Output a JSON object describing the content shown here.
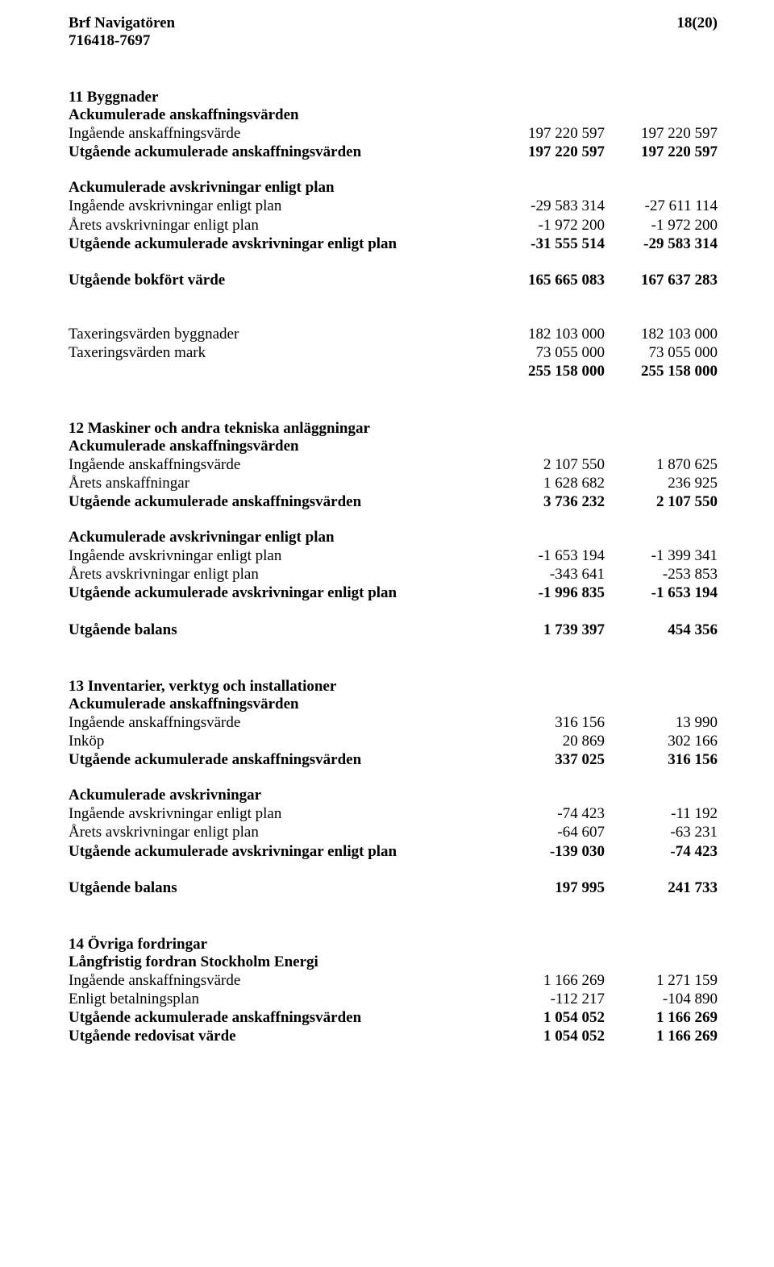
{
  "header": {
    "org_name": "Brf Navigatören",
    "page_no": "18(20)",
    "org_number": "716418-7697"
  },
  "note11": {
    "title": "11 Byggnader",
    "ackum_ansk_h": "Ackumulerade anskaffningsvärden",
    "r1": {
      "l": "Ingående anskaffningsvärde",
      "c1": "197 220 597",
      "c2": "197 220 597"
    },
    "r2": {
      "l": "Utgående ackumulerade anskaffningsvärden",
      "c1": "197 220 597",
      "c2": "197 220 597"
    },
    "ackum_avskr_h": "Ackumulerade avskrivningar enligt plan",
    "r3": {
      "l": "Ingående avskrivningar enligt plan",
      "c1": "-29 583 314",
      "c2": "-27 611 114"
    },
    "r4": {
      "l": "Årets avskrivningar enligt plan",
      "c1": "-1 972 200",
      "c2": "-1 972 200"
    },
    "r5": {
      "l": "Utgående ackumulerade avskrivningar enligt plan",
      "c1": "-31 555 514",
      "c2": "-29 583 314"
    },
    "r6": {
      "l": "Utgående bokfört värde",
      "c1": "165 665 083",
      "c2": "167 637 283"
    },
    "tax1": {
      "l": "Taxeringsvärden byggnader",
      "c1": "182 103 000",
      "c2": "182 103 000"
    },
    "tax2": {
      "l": "Taxeringsvärden mark",
      "c1": "73 055 000",
      "c2": "73 055 000"
    },
    "taxsum": {
      "l": "",
      "c1": "255 158 000",
      "c2": "255 158 000"
    }
  },
  "note12": {
    "title": "12 Maskiner och andra tekniska anläggningar",
    "ackum_ansk_h": "Ackumulerade anskaffningsvärden",
    "r1": {
      "l": "Ingående anskaffningsvärde",
      "c1": "2 107 550",
      "c2": "1 870 625"
    },
    "r2": {
      "l": "Årets anskaffningar",
      "c1": "1 628 682",
      "c2": "236 925"
    },
    "r3": {
      "l": "Utgående ackumulerade anskaffningsvärden",
      "c1": "3 736 232",
      "c2": "2 107 550"
    },
    "ackum_avskr_h": "Ackumulerade avskrivningar enligt plan",
    "r4": {
      "l": "Ingående avskrivningar enligt plan",
      "c1": "-1 653 194",
      "c2": "-1 399 341"
    },
    "r5": {
      "l": "Årets avskrivningar enligt plan",
      "c1": "-343 641",
      "c2": "-253 853"
    },
    "r6": {
      "l": "Utgående ackumulerade avskrivningar enligt plan",
      "c1": "-1 996 835",
      "c2": "-1 653 194"
    },
    "r7": {
      "l": "Utgående balans",
      "c1": "1 739 397",
      "c2": "454 356"
    }
  },
  "note13": {
    "title": "13 Inventarier, verktyg och installationer",
    "ackum_ansk_h": "Ackumulerade anskaffningsvärden",
    "r1": {
      "l": "Ingående anskaffningsvärde",
      "c1": "316 156",
      "c2": "13 990"
    },
    "r2": {
      "l": "Inköp",
      "c1": "20 869",
      "c2": "302 166"
    },
    "r3": {
      "l": "Utgående ackumulerade anskaffningsvärden",
      "c1": "337 025",
      "c2": "316 156"
    },
    "ackum_avskr_h": "Ackumulerade avskrivningar",
    "r4": {
      "l": "Ingående avskrivningar enligt plan",
      "c1": "-74 423",
      "c2": "-11 192"
    },
    "r5": {
      "l": "Årets avskrivningar enligt plan",
      "c1": "-64 607",
      "c2": "-63 231"
    },
    "r6": {
      "l": "Utgående ackumulerade avskrivningar enligt plan",
      "c1": "-139 030",
      "c2": "-74 423"
    },
    "r7": {
      "l": "Utgående balans",
      "c1": "197 995",
      "c2": "241 733"
    }
  },
  "note14": {
    "title": "14 Övriga fordringar",
    "sub": "Långfristig fordran Stockholm Energi",
    "r1": {
      "l": "Ingående anskaffningsvärde",
      "c1": "1 166 269",
      "c2": "1 271 159"
    },
    "r2": {
      "l": "Enligt betalningsplan",
      "c1": "-112 217",
      "c2": "-104 890"
    },
    "r3": {
      "l": "Utgående ackumulerade anskaffningsvärden",
      "c1": "1 054 052",
      "c2": "1 166 269"
    },
    "r4": {
      "l": "Utgående redovisat värde",
      "c1": "1 054 052",
      "c2": "1 166 269"
    }
  }
}
